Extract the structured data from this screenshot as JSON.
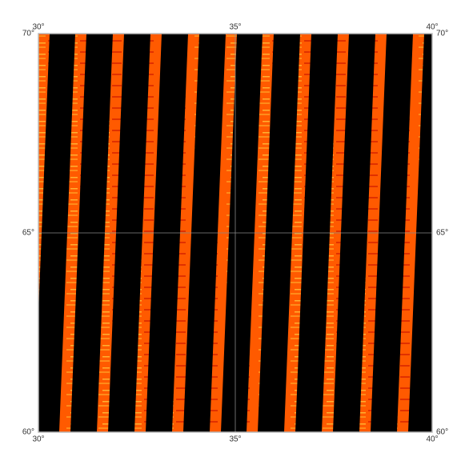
{
  "map": {
    "longitude_ticks": [
      {
        "value": 30,
        "label": "30°"
      },
      {
        "value": 35,
        "label": "35°"
      },
      {
        "value": 40,
        "label": "40°"
      }
    ],
    "latitude_ticks": [
      {
        "value": 60,
        "label": "60°"
      },
      {
        "value": 65,
        "label": "65°"
      },
      {
        "value": 70,
        "label": "70°"
      }
    ]
  }
}
